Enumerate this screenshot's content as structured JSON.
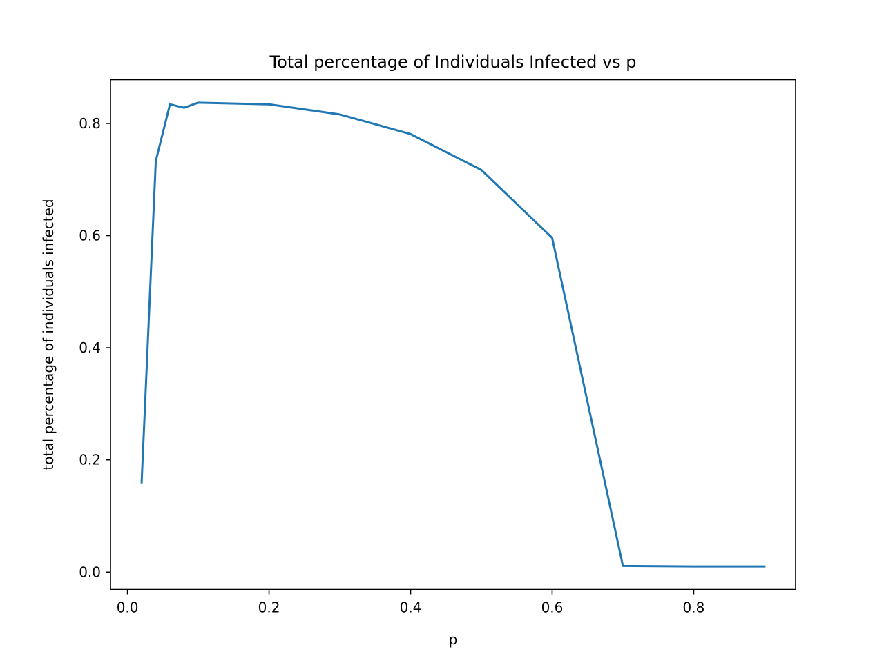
{
  "chart_data": {
    "type": "line",
    "title": "Total percentage of Individuals Infected vs p",
    "xlabel": "p",
    "ylabel": "total percentage of individuals infected",
    "xlim": [
      -0.024,
      0.944
    ],
    "ylim": [
      -0.031,
      0.878
    ],
    "xticks": [
      0.0,
      0.2,
      0.4,
      0.6,
      0.8
    ],
    "xtick_labels": [
      "0.0",
      "0.2",
      "0.4",
      "0.6",
      "0.8"
    ],
    "yticks": [
      0.0,
      0.2,
      0.4,
      0.6,
      0.8
    ],
    "ytick_labels": [
      "0.0",
      "0.2",
      "0.4",
      "0.6",
      "0.8"
    ],
    "grid": false,
    "legend": "none",
    "series": [
      {
        "color": "#1f77b4",
        "x": [
          0.02,
          0.04,
          0.06,
          0.08,
          0.1,
          0.2,
          0.3,
          0.4,
          0.5,
          0.6,
          0.7,
          0.8,
          0.9
        ],
        "y": [
          0.16,
          0.733,
          0.834,
          0.828,
          0.837,
          0.834,
          0.816,
          0.781,
          0.717,
          0.596,
          0.011,
          0.01,
          0.01
        ]
      }
    ]
  }
}
